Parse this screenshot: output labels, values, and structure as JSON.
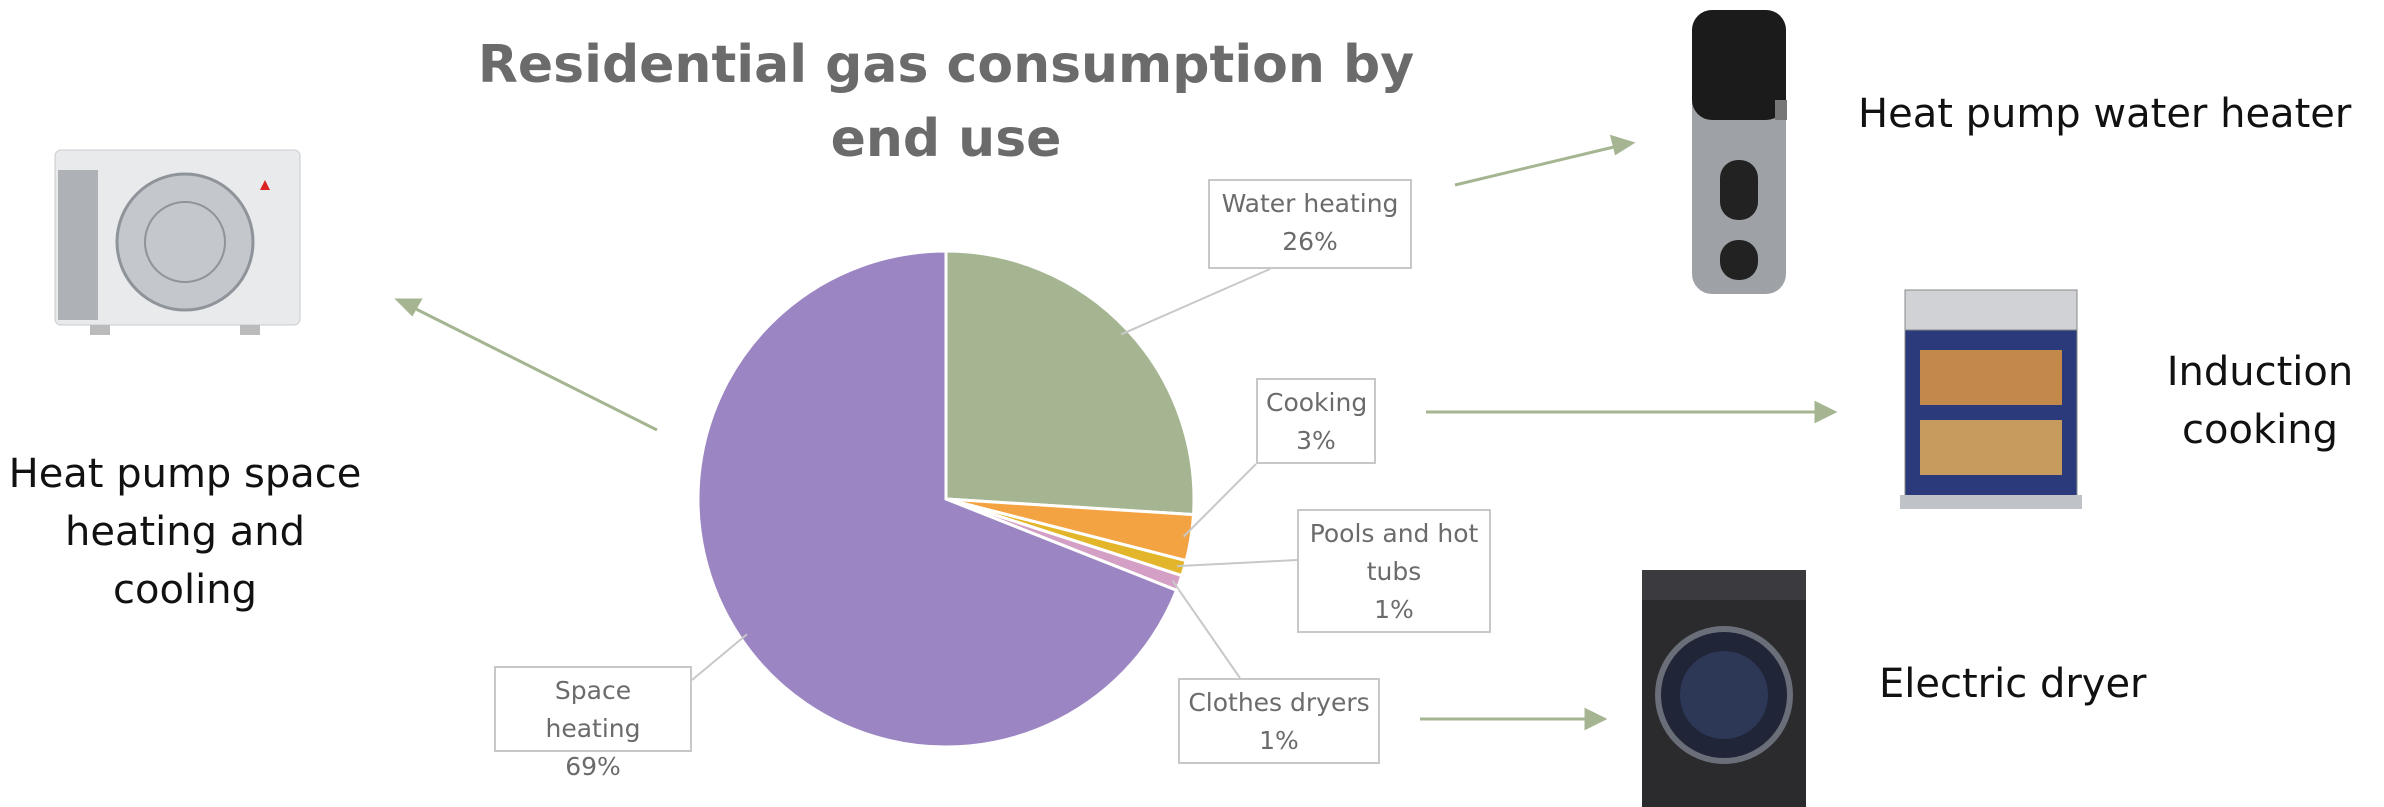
{
  "chart_data": {
    "type": "pie",
    "title": "Residential gas consumption by end use",
    "categories": [
      "Water heating",
      "Cooking",
      "Pools and hot tubs",
      "Clothes dryers",
      "Space heating"
    ],
    "values": [
      26,
      3,
      1,
      1,
      69
    ],
    "value_labels": [
      "26%",
      "3%",
      "1%",
      "1%",
      "69%"
    ],
    "colors": [
      "#a5b592",
      "#f4a342",
      "#e3b52b",
      "#d49fc4",
      "#9b85c2"
    ],
    "annotations": [
      "Heat pump space heating and cooling",
      "Heat pump water heater",
      "Induction cooking",
      "Electric dryer"
    ]
  }
}
